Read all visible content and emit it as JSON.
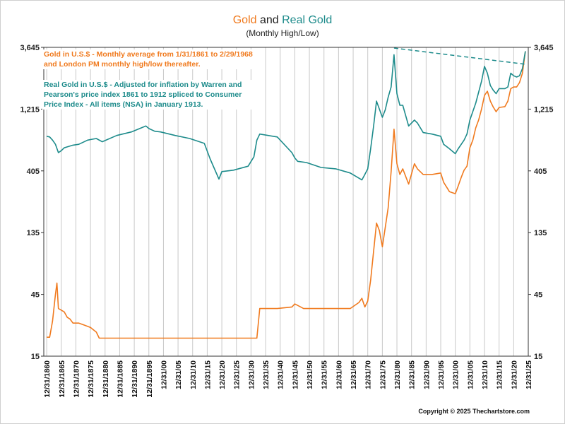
{
  "title": {
    "part1": "Gold",
    "and": " and ",
    "part2": "Real Gold"
  },
  "subtitle": "(Monthly High/Low)",
  "notes": {
    "gold": "Gold in U.S.$ - Monthly average from 1/31/1861 to 2/29/1968 and London PM monthly high/low thereafter.",
    "real": "Real Gold in U.S.$ - Adjusted for inflation by Warren and Pearson's price index 1861 to 1912 spliced to Consumer Price Index - All items (NSA) in January 1913."
  },
  "copyright": "Copyright © 2025 Thechartstore.com",
  "colors": {
    "gold": "#f07a1e",
    "real": "#1d8b8b",
    "grid": "#c8c8c8",
    "axis": "#333333"
  },
  "chart_data": {
    "type": "line",
    "title": "Gold and Real Gold",
    "subtitle": "(Monthly High/Low)",
    "y_scale": "log",
    "ylim": [
      15,
      3645
    ],
    "xlim": [
      1860,
      2026
    ],
    "y_ticks": [
      {
        "value": 15,
        "label": "15"
      },
      {
        "value": 45,
        "label": "45"
      },
      {
        "value": 135,
        "label": "135"
      },
      {
        "value": 405,
        "label": "405"
      },
      {
        "value": 1215,
        "label": "1,215"
      },
      {
        "value": 3645,
        "label": "3,645"
      }
    ],
    "x_ticks": [
      "12/31/1860",
      "12/31/1865",
      "12/31/1870",
      "12/31/1875",
      "12/31/1880",
      "12/31/1885",
      "12/31/1890",
      "12/31/1895",
      "12/31/00",
      "12/31/05",
      "12/31/10",
      "12/31/15",
      "12/31/20",
      "12/31/25",
      "12/31/30",
      "12/31/35",
      "12/31/40",
      "12/31/45",
      "12/31/50",
      "12/31/55",
      "12/31/60",
      "12/31/65",
      "12/31/70",
      "12/31/75",
      "12/31/80",
      "12/31/85",
      "12/31/90",
      "12/31/95",
      "12/31/00",
      "12/31/05",
      "12/31/10",
      "12/31/15",
      "12/31/20",
      "12/31/25"
    ],
    "grid": true,
    "series": [
      {
        "name": "Gold in U.S.$",
        "color": "#f07a1e",
        "x": [
          1861,
          1862,
          1863,
          1864,
          1864.5,
          1865,
          1866,
          1867,
          1868,
          1869,
          1870,
          1872,
          1874,
          1876,
          1878,
          1879,
          1900,
          1920,
          1933,
          1934,
          1940,
          1945,
          1946,
          1947,
          1949,
          1950,
          1955,
          1960,
          1965,
          1968,
          1969,
          1970,
          1971,
          1972,
          1973,
          1974,
          1975,
          1976,
          1977,
          1978,
          1979,
          1980,
          1981,
          1982,
          1983,
          1985,
          1987,
          1988,
          1990,
          1993,
          1996,
          1997,
          1999,
          2001,
          2002,
          2003,
          2004,
          2005,
          2006,
          2007,
          2008,
          2009,
          2010,
          2011,
          2012,
          2013,
          2014,
          2015,
          2016,
          2017,
          2018,
          2019,
          2020,
          2021,
          2022,
          2023,
          2024,
          2025
        ],
        "values": [
          21,
          21,
          28,
          45,
          55,
          35,
          34,
          33,
          30,
          29,
          27,
          27,
          26,
          25,
          23,
          20.67,
          20.67,
          20.67,
          20.67,
          35,
          35,
          36,
          38,
          37,
          35,
          35,
          35,
          35,
          35,
          39,
          42,
          36,
          40,
          58,
          97,
          160,
          140,
          105,
          148,
          210,
          400,
          850,
          460,
          380,
          420,
          320,
          460,
          420,
          380,
          380,
          390,
          330,
          280,
          270,
          310,
          360,
          410,
          440,
          610,
          700,
          870,
          1000,
          1220,
          1550,
          1670,
          1400,
          1260,
          1160,
          1250,
          1260,
          1270,
          1400,
          1750,
          1800,
          1800,
          1950,
          2300,
          3400
        ]
      },
      {
        "name": "Real Gold in U.S.$",
        "color": "#1d8b8b",
        "x": [
          1861,
          1862,
          1863,
          1864,
          1865,
          1866,
          1867,
          1868,
          1870,
          1872,
          1875,
          1878,
          1880,
          1885,
          1890,
          1895,
          1896,
          1898,
          1900,
          1905,
          1910,
          1915,
          1917,
          1920,
          1921,
          1925,
          1930,
          1932,
          1933,
          1934,
          1940,
          1945,
          1946,
          1947,
          1950,
          1955,
          1960,
          1965,
          1969,
          1970,
          1971,
          1972,
          1973,
          1974,
          1976,
          1977,
          1978,
          1979,
          1980,
          1981,
          1982,
          1983,
          1985,
          1987,
          1988,
          1990,
          1993,
          1996,
          1997,
          1999,
          2001,
          2002,
          2004,
          2005,
          2006,
          2008,
          2010,
          2011,
          2012,
          2013,
          2014,
          2015,
          2016,
          2018,
          2019,
          2020,
          2021,
          2022,
          2023,
          2024,
          2025
        ],
        "values": [
          750,
          740,
          700,
          650,
          560,
          580,
          610,
          620,
          640,
          650,
          700,
          720,
          680,
          760,
          810,
          900,
          860,
          820,
          810,
          760,
          720,
          660,
          500,
          350,
          400,
          410,
          440,
          520,
          700,
          780,
          740,
          560,
          510,
          480,
          470,
          430,
          420,
          390,
          345,
          380,
          420,
          600,
          900,
          1400,
          1050,
          1200,
          1500,
          1800,
          3200,
          1600,
          1300,
          1300,
          900,
          1000,
          950,
          800,
          780,
          750,
          650,
          600,
          550,
          600,
          700,
          780,
          1000,
          1350,
          2000,
          2600,
          2300,
          1850,
          1700,
          1600,
          1750,
          1750,
          1800,
          2300,
          2200,
          2150,
          2200,
          2500,
          3400
        ]
      }
    ],
    "trendline": {
      "x": [
        1980,
        2025
      ],
      "values": [
        3600,
        2700
      ],
      "color": "#1d8b8b",
      "style": "dashed"
    }
  }
}
